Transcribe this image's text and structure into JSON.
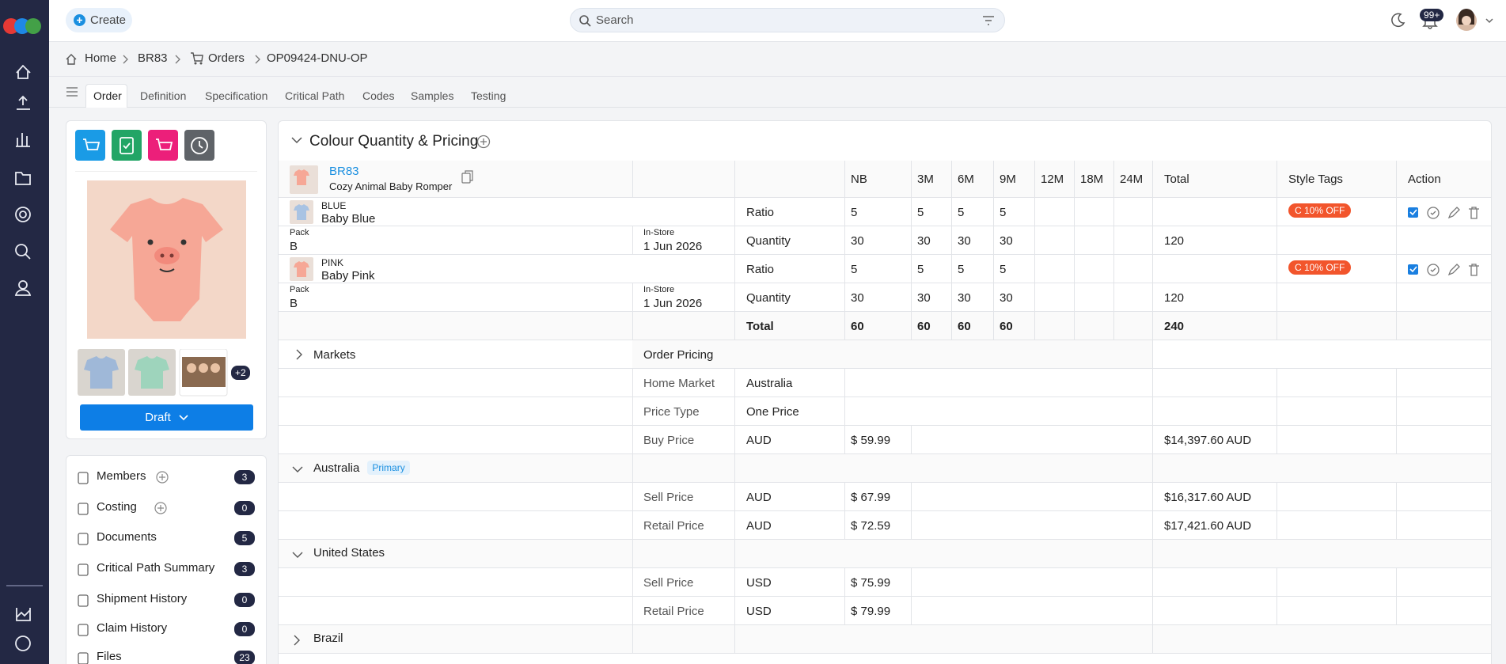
{
  "nav": {
    "create": "Create",
    "search_placeholder": "Search",
    "notifications": "99+"
  },
  "breadcrumb": [
    "Home",
    "BR83",
    "Orders",
    "OP09424-DNU-OP"
  ],
  "tabs": [
    "Order",
    "Definition",
    "Specification",
    "Critical Path",
    "Codes",
    "Samples",
    "Testing"
  ],
  "product": {
    "status": "Draft",
    "more_images": "+2"
  },
  "sidebar_items": [
    {
      "label": "Members",
      "count": 3
    },
    {
      "label": "Costing",
      "count": 0
    },
    {
      "label": "Documents",
      "count": 5
    },
    {
      "label": "Critical Path Summary",
      "count": 3
    },
    {
      "label": "Shipment History",
      "count": 0
    },
    {
      "label": "Claim History",
      "count": 0
    },
    {
      "label": "Files",
      "count": 23
    }
  ],
  "section": {
    "title": "Colour Quantity & Pricing"
  },
  "table": {
    "header": {
      "code": "BR83",
      "name": "Cozy Animal Baby Romper",
      "sizes": [
        "NB",
        "3M",
        "6M",
        "9M",
        "12M",
        "18M",
        "24M"
      ],
      "total": "Total",
      "style_tags": "Style Tags",
      "action": "Action"
    },
    "colours": [
      {
        "code": "BLUE",
        "name": "Baby Blue",
        "ratio_label": "Ratio",
        "ratios": [
          5,
          5,
          5,
          5
        ],
        "tag": "C 10% OFF",
        "pack_label": "Pack",
        "pack": "B",
        "instore_label": "In-Store",
        "instore": "1 Jun 2026",
        "quantity_label": "Quantity",
        "quantities": [
          30,
          30,
          30,
          30
        ],
        "total": 120
      },
      {
        "code": "PINK",
        "name": "Baby Pink",
        "ratio_label": "Ratio",
        "ratios": [
          5,
          5,
          5,
          5
        ],
        "tag": "C 10% OFF",
        "pack_label": "Pack",
        "pack": "B",
        "instore_label": "In-Store",
        "instore": "1 Jun 2026",
        "quantity_label": "Quantity",
        "quantities": [
          30,
          30,
          30,
          30
        ],
        "total": 120
      }
    ],
    "totals": {
      "label": "Total",
      "values": [
        60,
        60,
        60,
        60
      ],
      "total": 240
    },
    "markets": {
      "label": "Markets",
      "order_pricing": "Order Pricing",
      "home_market": {
        "label": "Home Market",
        "value": "Australia"
      },
      "price_type": {
        "label": "Price Type",
        "value": "One Price"
      },
      "buy_price": {
        "label": "Buy Price",
        "currency": "AUD",
        "price": "$ 59.99",
        "total": "$14,397.60 AUD"
      }
    },
    "regions": [
      {
        "name": "Australia",
        "badge": "Primary",
        "rows": [
          {
            "label": "Sell Price",
            "currency": "AUD",
            "price": "$ 67.99",
            "total": "$16,317.60 AUD"
          },
          {
            "label": "Retail Price",
            "currency": "AUD",
            "price": "$ 72.59",
            "total": "$17,421.60 AUD"
          }
        ]
      },
      {
        "name": "United States",
        "rows": [
          {
            "label": "Sell Price",
            "currency": "USD",
            "price": "$ 75.99"
          },
          {
            "label": "Retail Price",
            "currency": "USD",
            "price": "$ 79.99"
          }
        ]
      },
      {
        "name": "Brazil",
        "rows": []
      }
    ]
  }
}
